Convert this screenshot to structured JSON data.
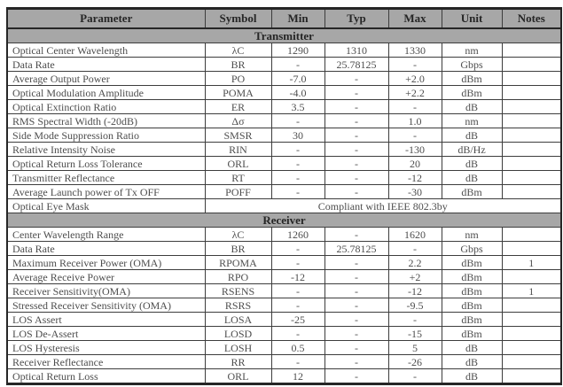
{
  "page": {
    "background_color": "#ffffff"
  },
  "table": {
    "header_bg_color": "#a7a7a7",
    "section_bg_color": "#a7a7a7",
    "border_color": "#3d3d3d",
    "outer_border_color": "#262626",
    "header_text_color": "#262626",
    "body_text_color": "#4d4d4d",
    "columns": [
      "Parameter",
      "Symbol",
      "Min",
      "Typ",
      "Max",
      "Unit",
      "Notes"
    ],
    "sections": [
      {
        "title": "Transmitter",
        "rows": [
          [
            "Optical Center Wavelength",
            "λC",
            "1290",
            "1310",
            "1330",
            "nm",
            ""
          ],
          [
            "Data Rate",
            "BR",
            "-",
            "25.78125",
            "-",
            "Gbps",
            ""
          ],
          [
            "Average Output Power",
            "PO",
            "-7.0",
            "-",
            "+2.0",
            "dBm",
            ""
          ],
          [
            "Optical Modulation Amplitude",
            "POMA",
            "-4.0",
            "-",
            "+2.2",
            "dBm",
            ""
          ],
          [
            "Optical Extinction Ratio",
            "ER",
            "3.5",
            "-",
            "-",
            "dB",
            ""
          ],
          [
            "RMS Spectral Width (-20dB)",
            "Δσ",
            "-",
            "-",
            "1.0",
            "nm",
            ""
          ],
          [
            "Side Mode Suppression Ratio",
            "SMSR",
            "30",
            "-",
            "-",
            "dB",
            ""
          ],
          [
            "Relative Intensity Noise",
            "RIN",
            "-",
            "-",
            "-130",
            "dB/Hz",
            ""
          ],
          [
            "Optical Return Loss Tolerance",
            "ORL",
            "-",
            "-",
            "20",
            "dB",
            ""
          ],
          [
            "Transmitter Reflectance",
            "RT",
            "-",
            "-",
            "-12",
            "dB",
            ""
          ],
          [
            "Average Launch power of Tx OFF",
            "POFF",
            "-",
            "-",
            "-30",
            "dBm",
            ""
          ],
          {
            "parameter": "Optical Eye Mask",
            "merged_value": "Compliant with IEEE 802.3by"
          }
        ]
      },
      {
        "title": "Receiver",
        "rows": [
          [
            "Center Wavelength Range",
            "λC",
            "1260",
            "-",
            "1620",
            "nm",
            ""
          ],
          [
            "Data Rate",
            "BR",
            "-",
            "25.78125",
            "-",
            "Gbps",
            ""
          ],
          [
            "Maximum Receiver Power (OMA)",
            "RPOMA",
            "-",
            "-",
            "2.2",
            "dBm",
            "1"
          ],
          [
            "Average Receive Power",
            "RPO",
            "-12",
            "-",
            "+2",
            "dBm",
            ""
          ],
          [
            "Receiver Sensitivity(OMA)",
            "RSENS",
            "-",
            "-",
            "-12",
            "dBm",
            "1"
          ],
          [
            "Stressed Receiver Sensitivity (OMA)",
            "RSRS",
            "-",
            "-",
            "-9.5",
            "dBm",
            ""
          ],
          [
            "LOS Assert",
            "LOSA",
            "-25",
            "-",
            "-",
            "dBm",
            ""
          ],
          [
            "LOS De-Assert",
            "LOSD",
            "-",
            "-",
            "-15",
            "dBm",
            ""
          ],
          [
            "LOS Hysteresis",
            "LOSH",
            "0.5",
            "-",
            "5",
            "dB",
            ""
          ],
          [
            "Receiver Reflectance",
            "RR",
            "-",
            "-",
            "-26",
            "dB",
            ""
          ],
          [
            "Optical Return Loss",
            "ORL",
            "12",
            "-",
            "-",
            "dB",
            ""
          ]
        ]
      }
    ]
  }
}
